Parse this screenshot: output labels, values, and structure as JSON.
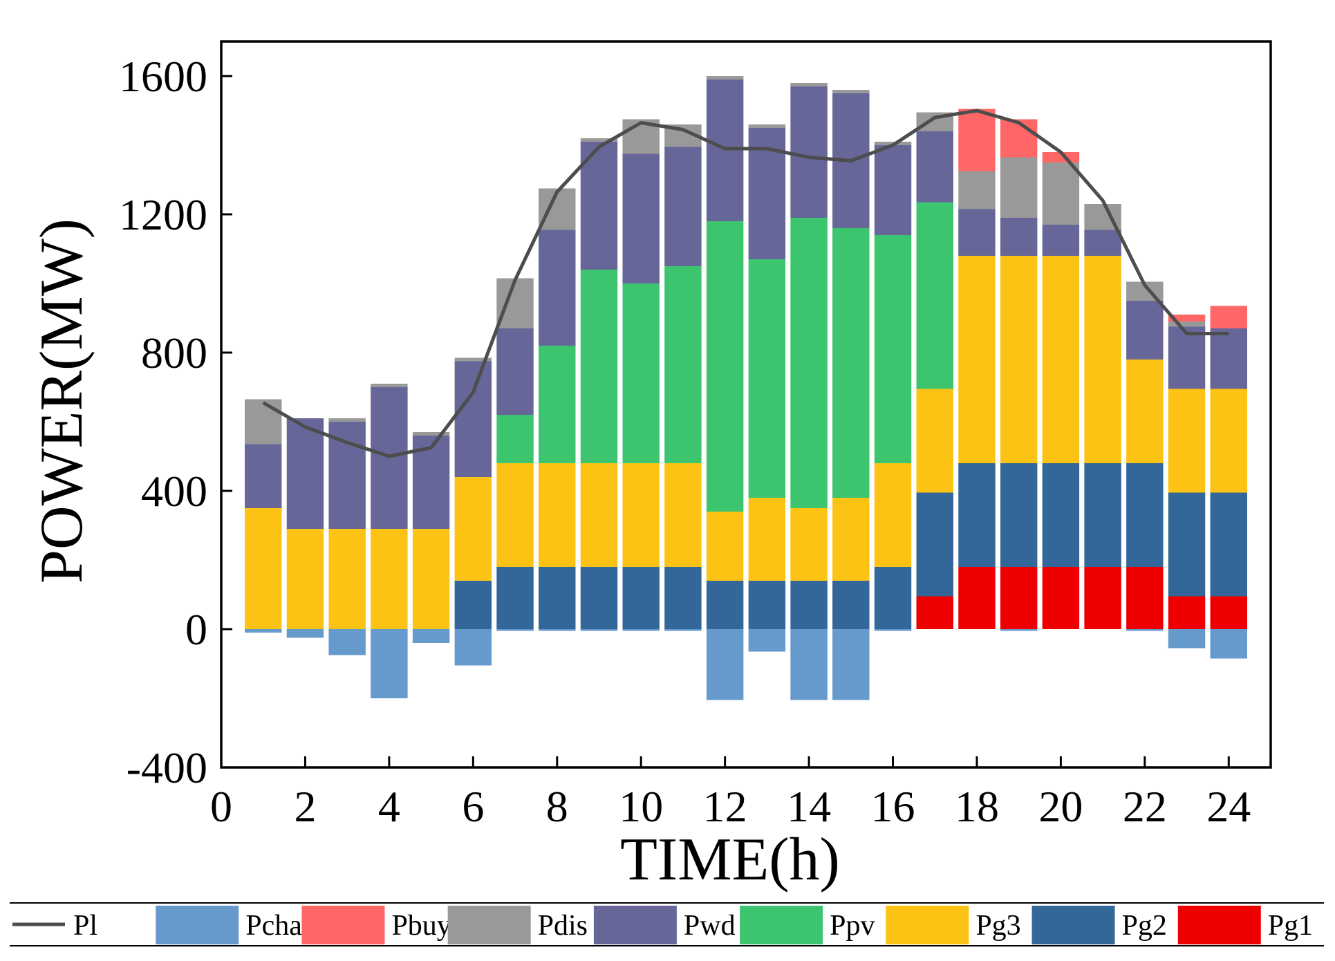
{
  "chart_data": {
    "type": "bar",
    "stacked": true,
    "title": "",
    "xlabel": "TIME(h)",
    "ylabel": "POWER(MW)",
    "xlim": [
      0,
      25
    ],
    "ylim": [
      -400,
      1700
    ],
    "xticks": [
      0,
      2,
      4,
      6,
      8,
      10,
      12,
      14,
      16,
      18,
      20,
      22,
      24
    ],
    "yticks": [
      -400,
      0,
      400,
      800,
      1200,
      1600
    ],
    "xtick_labels": [
      "0",
      "2",
      "4",
      "6",
      "8",
      "10",
      "12",
      "14",
      "16",
      "18",
      "20",
      "22",
      "24"
    ],
    "ytick_labels": [
      "-400",
      "0",
      "400",
      "800",
      "1200",
      "1600"
    ],
    "legend_position": "bottom",
    "categories": [
      1,
      2,
      3,
      4,
      5,
      6,
      7,
      8,
      9,
      10,
      11,
      12,
      13,
      14,
      15,
      16,
      17,
      18,
      19,
      20,
      21,
      22,
      23,
      24
    ],
    "series": [
      {
        "name": "Pg1",
        "color": "#ee0000",
        "values": [
          0,
          0,
          0,
          0,
          0,
          0,
          0,
          0,
          0,
          0,
          0,
          0,
          0,
          0,
          0,
          0,
          95,
          180,
          180,
          180,
          180,
          180,
          95,
          95
        ]
      },
      {
        "name": "Pg2",
        "color": "#336699",
        "values": [
          0,
          0,
          0,
          0,
          0,
          140,
          180,
          180,
          180,
          180,
          180,
          140,
          140,
          140,
          140,
          180,
          300,
          300,
          300,
          300,
          300,
          300,
          300,
          300
        ]
      },
      {
        "name": "Pg3",
        "color": "#fcc314",
        "values": [
          350,
          290,
          290,
          290,
          290,
          300,
          300,
          300,
          300,
          300,
          300,
          200,
          240,
          210,
          240,
          300,
          300,
          600,
          600,
          600,
          600,
          300,
          300,
          300
        ]
      },
      {
        "name": "Ppv",
        "color": "#3cc46f",
        "values": [
          0,
          0,
          0,
          0,
          0,
          0,
          140,
          340,
          560,
          520,
          570,
          840,
          690,
          840,
          780,
          660,
          540,
          0,
          0,
          0,
          0,
          0,
          0,
          0
        ]
      },
      {
        "name": "Pwd",
        "color": "#666699",
        "values": [
          185,
          320,
          310,
          410,
          270,
          335,
          250,
          335,
          370,
          375,
          345,
          410,
          380,
          380,
          390,
          260,
          205,
          135,
          110,
          90,
          75,
          170,
          180,
          175
        ]
      },
      {
        "name": "Pdis",
        "color": "#999999",
        "values": [
          130,
          0,
          10,
          10,
          10,
          10,
          145,
          120,
          10,
          100,
          65,
          10,
          10,
          10,
          10,
          10,
          55,
          110,
          175,
          180,
          75,
          55,
          15,
          0
        ]
      },
      {
        "name": "Pbuy",
        "color": "#ff6666",
        "values": [
          0,
          0,
          0,
          0,
          0,
          0,
          0,
          0,
          0,
          0,
          0,
          0,
          0,
          0,
          0,
          0,
          0,
          180,
          110,
          30,
          0,
          0,
          20,
          65
        ]
      },
      {
        "name": "Pcha",
        "color": "#6699cc",
        "values": [
          -10,
          -25,
          -75,
          -200,
          -40,
          -105,
          -5,
          -5,
          -5,
          -5,
          -5,
          -205,
          -65,
          -205,
          -205,
          -5,
          0,
          0,
          -5,
          0,
          0,
          -5,
          -55,
          -85
        ]
      }
    ],
    "line_series": {
      "name": "Pl",
      "color": "#4d4d4d",
      "values": [
        655,
        585,
        540,
        500,
        525,
        685,
        1010,
        1265,
        1395,
        1465,
        1445,
        1390,
        1390,
        1365,
        1355,
        1400,
        1480,
        1500,
        1465,
        1380,
        1240,
        995,
        855,
        855
      ]
    },
    "legend": [
      {
        "name": "Pl",
        "kind": "line",
        "color": "#4d4d4d"
      },
      {
        "name": "Pcha",
        "kind": "patch",
        "color": "#6699cc"
      },
      {
        "name": "Pbuy",
        "kind": "patch",
        "color": "#ff6666"
      },
      {
        "name": "Pdis",
        "kind": "patch",
        "color": "#999999"
      },
      {
        "name": "Pwd",
        "kind": "patch",
        "color": "#666699"
      },
      {
        "name": "Ppv",
        "kind": "patch",
        "color": "#3cc46f"
      },
      {
        "name": "Pg3",
        "kind": "patch",
        "color": "#fcc314"
      },
      {
        "name": "Pg2",
        "kind": "patch",
        "color": "#336699"
      },
      {
        "name": "Pg1",
        "kind": "patch",
        "color": "#ee0000"
      }
    ]
  }
}
